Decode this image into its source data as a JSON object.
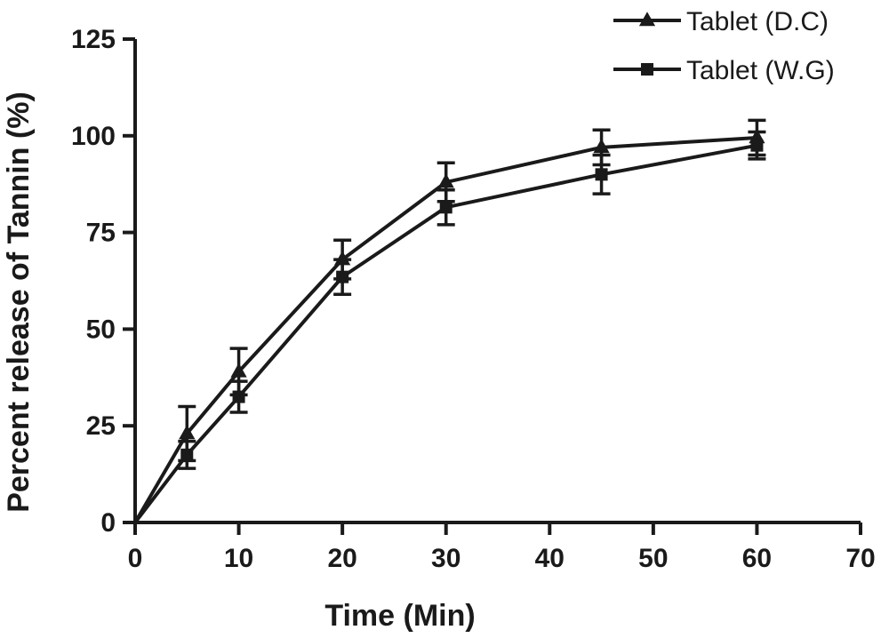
{
  "chart_data": {
    "type": "line",
    "xlabel": "Time (Min)",
    "ylabel": "Percent release of Tannin (%)",
    "xlim": [
      0,
      70
    ],
    "ylim": [
      0,
      125
    ],
    "xticks": [
      0,
      10,
      20,
      30,
      40,
      50,
      60,
      70
    ],
    "yticks": [
      0,
      25,
      50,
      75,
      100,
      125
    ],
    "grid": false,
    "legend_position": "top-right",
    "series": [
      {
        "name": "Tablet (D.C)",
        "marker": "triangle",
        "color": "#1a1a1a",
        "x": [
          0,
          5,
          10,
          20,
          30,
          45,
          60
        ],
        "y": [
          0,
          23,
          39,
          68,
          88,
          97,
          99.5
        ],
        "error": [
          0,
          7,
          6,
          5,
          5,
          4.5,
          4.5
        ]
      },
      {
        "name": "Tablet (W.G)",
        "marker": "square",
        "color": "#1a1a1a",
        "x": [
          0,
          5,
          10,
          20,
          30,
          45,
          60
        ],
        "y": [
          0,
          17.5,
          32.5,
          63.5,
          81.5,
          90,
          97.5
        ],
        "error": [
          0,
          3.5,
          4,
          4.5,
          4.5,
          5,
          3.5
        ]
      }
    ]
  }
}
